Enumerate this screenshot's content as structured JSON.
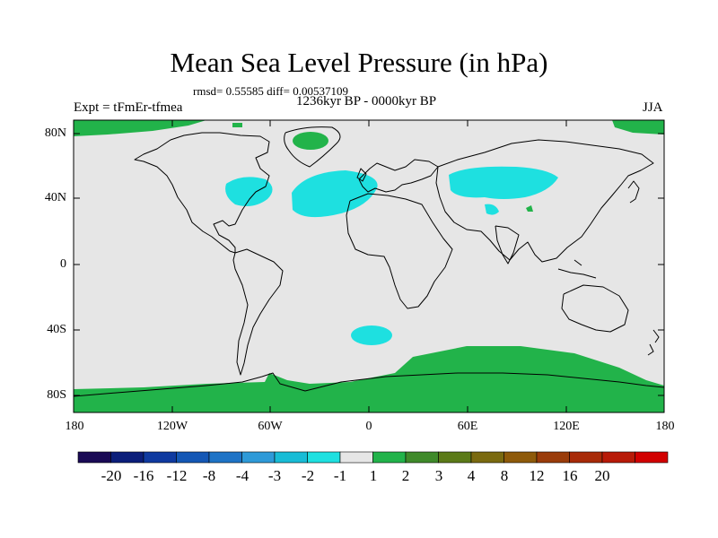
{
  "title": "Mean Sea Level Pressure (in hPa)",
  "stats": "rmsd= 0.55585 diff= 0.00537109",
  "period": "1236kyr BP - 0000kyr BP",
  "experiment": "Expt = tFmEr-tfmea",
  "season": "JJA",
  "lat_labels": [
    "80N",
    "40N",
    "0",
    "40S",
    "80S"
  ],
  "lon_labels": [
    "180",
    "120W",
    "60W",
    "0",
    "60E",
    "120E",
    "180"
  ],
  "colorbar": {
    "colors": [
      "#1a0a55",
      "#0b1e7a",
      "#0f3aa0",
      "#1457b5",
      "#1e73c6",
      "#2e9ad8",
      "#18bcd6",
      "#1ee0e0",
      "#e6e6e6",
      "#22b34a",
      "#3f8a2a",
      "#5b7a18",
      "#7a6a10",
      "#8e5a0a",
      "#9a3c0a",
      "#a82a08",
      "#b81a08",
      "#d20000"
    ],
    "labels": [
      "-20",
      "-16",
      "-12",
      "-8",
      "-4",
      "-3",
      "-2",
      "-1",
      "1",
      "2",
      "3",
      "4",
      "8",
      "12",
      "16",
      "20"
    ]
  },
  "map_colors": {
    "background": "#e6e6e6",
    "positive": "#22b34a",
    "negative": "#1ee0e0",
    "coast": "#000000"
  }
}
